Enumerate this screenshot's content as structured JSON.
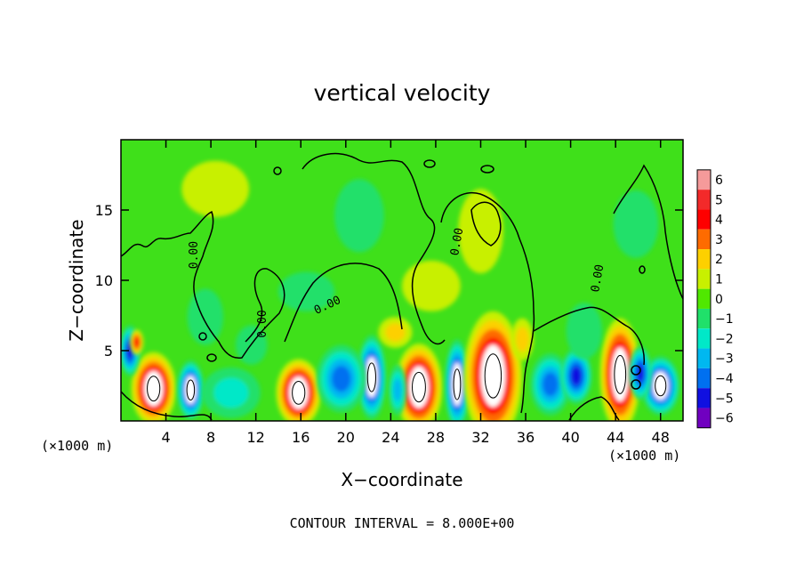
{
  "chart_data": {
    "type": "heatmap",
    "title": "vertical velocity",
    "xlabel": "X−coordinate",
    "ylabel": "Z−coordinate",
    "x_unit_left": "(×1000 m)",
    "x_unit_right": "(×1000 m)",
    "footer": "CONTOUR INTERVAL = 8.000E+00",
    "xlim": [
      0,
      50
    ],
    "ylim": [
      0,
      20
    ],
    "x_ticks": [
      4,
      8,
      12,
      16,
      20,
      24,
      28,
      32,
      36,
      40,
      44,
      48
    ],
    "x_tick_labels": [
      "4",
      "8",
      "12",
      "16",
      "20",
      "24",
      "28",
      "32",
      "36",
      "40",
      "44",
      "48"
    ],
    "y_ticks": [
      5,
      10,
      15
    ],
    "y_tick_labels": [
      "5",
      "10",
      "15"
    ],
    "contour_labels": [
      {
        "text": "0.00",
        "x": 6.8,
        "y": 11.8,
        "angle": -90
      },
      {
        "text": "0.00",
        "x": 12.9,
        "y": 6.9,
        "angle": -90
      },
      {
        "text": "0.00",
        "x": 18.5,
        "y": 8.0,
        "angle": -25
      },
      {
        "text": "0.00",
        "x": 30.2,
        "y": 12.7,
        "angle": -80
      },
      {
        "text": "0.00",
        "x": 42.7,
        "y": 10.1,
        "angle": -80
      }
    ],
    "colorbar": {
      "values": [
        6,
        5,
        4,
        3,
        2,
        1,
        0,
        -1,
        -2,
        -3,
        -4,
        -5,
        -6
      ],
      "labels": [
        "6",
        "5",
        "4",
        "3",
        "2",
        "1",
        "0",
        "−1",
        "−2",
        "−3",
        "−4",
        "−5",
        "−6"
      ],
      "colors": [
        "#f59a9a",
        "#f32a2a",
        "#fe0000",
        "#fe6b00",
        "#fdd000",
        "#c8f000",
        "#50e800",
        "#20e06a",
        "#00e8c8",
        "#00b8f0",
        "#0070f0",
        "#1010e0",
        "#7000c0"
      ]
    },
    "background_color": "#3fe01a",
    "cells": [
      {
        "x": 2.9,
        "z": 2.3,
        "rx": 2.0,
        "rz": 2.6,
        "w": 6
      },
      {
        "x": 6.2,
        "z": 2.2,
        "rx": 1.2,
        "rz": 2.1,
        "w": -6
      },
      {
        "x": 15.8,
        "z": 2.0,
        "rx": 2.0,
        "rz": 2.4,
        "w": 6
      },
      {
        "x": 22.3,
        "z": 3.1,
        "rx": 1.3,
        "rz": 3.0,
        "w": -6
      },
      {
        "x": 26.5,
        "z": 2.4,
        "rx": 2.1,
        "rz": 3.1,
        "w": 6
      },
      {
        "x": 29.9,
        "z": 2.6,
        "rx": 1.1,
        "rz": 3.2,
        "w": -6
      },
      {
        "x": 33.1,
        "z": 3.2,
        "rx": 2.6,
        "rz": 4.6,
        "w": 6
      },
      {
        "x": 44.4,
        "z": 3.3,
        "rx": 1.8,
        "rz": 4.0,
        "w": 6
      },
      {
        "x": 48.0,
        "z": 2.5,
        "rx": 1.7,
        "rz": 2.1,
        "w": -6
      },
      {
        "x": 0.8,
        "z": 5.0,
        "rx": 0.9,
        "rz": 1.8,
        "w": -5
      },
      {
        "x": 1.4,
        "z": 5.6,
        "rx": 0.6,
        "rz": 0.9,
        "w": 4
      },
      {
        "x": 9.8,
        "z": 2.0,
        "rx": 2.6,
        "rz": 1.8,
        "w": -2
      },
      {
        "x": 19.6,
        "z": 3.0,
        "rx": 2.2,
        "rz": 2.4,
        "w": -4
      },
      {
        "x": 24.6,
        "z": 2.2,
        "rx": 0.8,
        "rz": 1.8,
        "w": -3
      },
      {
        "x": 38.2,
        "z": 2.6,
        "rx": 1.8,
        "rz": 2.2,
        "w": -4
      },
      {
        "x": 40.5,
        "z": 3.2,
        "rx": 1.4,
        "rz": 2.0,
        "w": -5
      },
      {
        "x": 46.2,
        "z": 3.4,
        "rx": 1.0,
        "rz": 1.9,
        "w": -5
      },
      {
        "x": 24.4,
        "z": 6.3,
        "rx": 1.5,
        "rz": 1.1,
        "w": 2
      },
      {
        "x": 35.7,
        "z": 5.8,
        "rx": 1.0,
        "rz": 1.5,
        "w": 2
      },
      {
        "x": 11.6,
        "z": 5.4,
        "rx": 1.4,
        "rz": 1.4,
        "w": -1
      },
      {
        "x": 7.5,
        "z": 7.4,
        "rx": 1.6,
        "rz": 2.0,
        "w": -1
      },
      {
        "x": 41.2,
        "z": 6.4,
        "rx": 1.6,
        "rz": 2.0,
        "w": -1
      },
      {
        "x": 16.5,
        "z": 9.2,
        "rx": 2.5,
        "rz": 1.4,
        "w": -1
      },
      {
        "x": 27.6,
        "z": 9.6,
        "rx": 2.6,
        "rz": 1.8,
        "w": 1
      },
      {
        "x": 32.0,
        "z": 13.5,
        "rx": 2.0,
        "rz": 3.0,
        "w": 1
      },
      {
        "x": 21.2,
        "z": 14.6,
        "rx": 2.2,
        "rz": 2.6,
        "w": -1
      },
      {
        "x": 45.8,
        "z": 14.0,
        "rx": 2.0,
        "rz": 2.4,
        "w": -1
      },
      {
        "x": 8.4,
        "z": 16.5,
        "rx": 3.0,
        "rz": 2.0,
        "w": 1
      }
    ]
  }
}
